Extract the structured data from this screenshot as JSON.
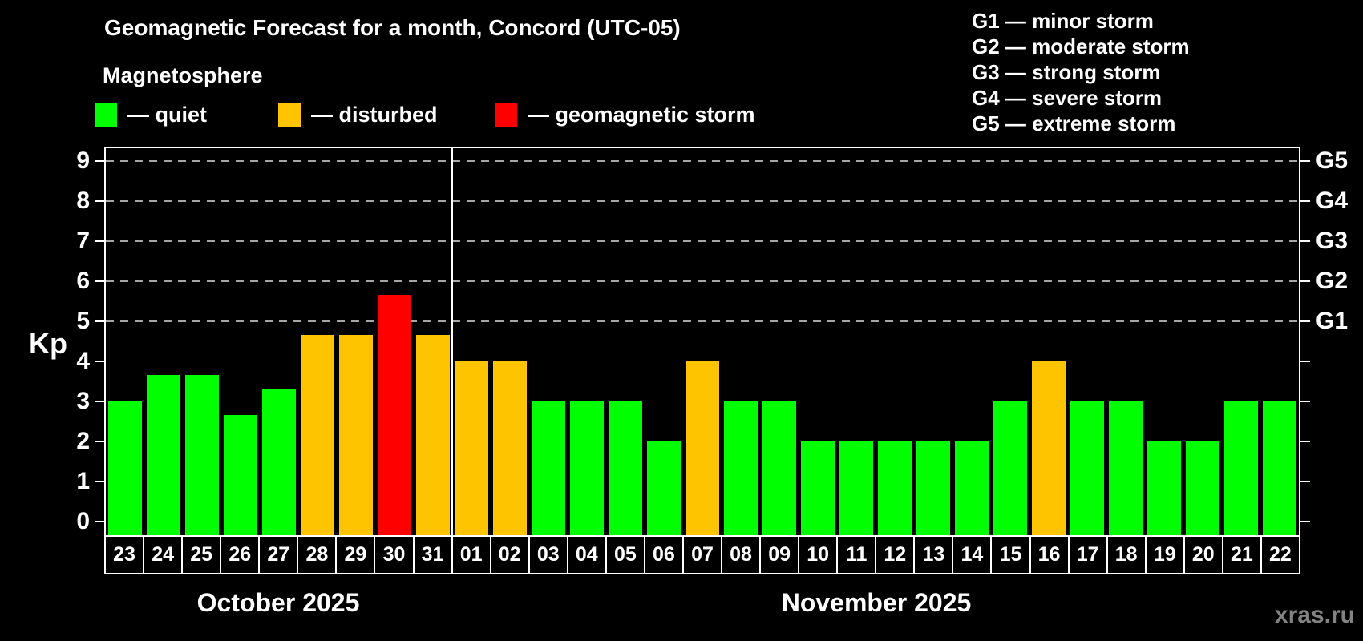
{
  "header": {
    "title": "Geomagnetic Forecast for a month, Concord (UTC-05)",
    "subtitle": "Magnetosphere"
  },
  "legend": {
    "items": [
      {
        "label": "— quiet",
        "color": "#00ff00",
        "status": "quiet"
      },
      {
        "label": "— disturbed",
        "color": "#ffc400",
        "status": "disturbed"
      },
      {
        "label": "— geomagnetic storm",
        "color": "#ff0000",
        "status": "storm"
      }
    ]
  },
  "storm_scale_legend": {
    "items": [
      "G1 — minor storm",
      "G2 — moderate storm",
      "G3 — strong storm",
      "G4 — severe storm",
      "G5 — extreme storm"
    ]
  },
  "watermark": "xras.ru",
  "chart_data": {
    "type": "bar",
    "title": "Geomagnetic Forecast for a month, Concord (UTC-05)",
    "ylabel": "Kp",
    "ylim": [
      0,
      9
    ],
    "yticks": [
      0,
      1,
      2,
      3,
      4,
      5,
      6,
      7,
      8,
      9
    ],
    "grid_levels": [
      5,
      6,
      7,
      8,
      9
    ],
    "grid_style": "dashed",
    "legend_position": "top",
    "right_axis": [
      {
        "kp": 5,
        "label": "G1"
      },
      {
        "kp": 6,
        "label": "G2"
      },
      {
        "kp": 7,
        "label": "G3"
      },
      {
        "kp": 8,
        "label": "G4"
      },
      {
        "kp": 9,
        "label": "G5"
      }
    ],
    "months": [
      {
        "label": "October 2025",
        "start_index": 0,
        "count": 9
      },
      {
        "label": "November 2025",
        "start_index": 9,
        "count": 22
      }
    ],
    "status_colors": {
      "quiet": "#00ff00",
      "disturbed": "#ffc400",
      "storm": "#ff0000"
    },
    "bars": [
      {
        "day": "23",
        "value": 3.0,
        "status": "quiet"
      },
      {
        "day": "24",
        "value": 3.67,
        "status": "quiet"
      },
      {
        "day": "25",
        "value": 3.67,
        "status": "quiet"
      },
      {
        "day": "26",
        "value": 2.67,
        "status": "quiet"
      },
      {
        "day": "27",
        "value": 3.33,
        "status": "quiet"
      },
      {
        "day": "28",
        "value": 4.67,
        "status": "disturbed"
      },
      {
        "day": "29",
        "value": 4.67,
        "status": "disturbed"
      },
      {
        "day": "30",
        "value": 5.67,
        "status": "storm"
      },
      {
        "day": "31",
        "value": 4.67,
        "status": "disturbed"
      },
      {
        "day": "01",
        "value": 4.0,
        "status": "disturbed"
      },
      {
        "day": "02",
        "value": 4.0,
        "status": "disturbed"
      },
      {
        "day": "03",
        "value": 3.0,
        "status": "quiet"
      },
      {
        "day": "04",
        "value": 3.0,
        "status": "quiet"
      },
      {
        "day": "05",
        "value": 3.0,
        "status": "quiet"
      },
      {
        "day": "06",
        "value": 2.0,
        "status": "quiet"
      },
      {
        "day": "07",
        "value": 4.0,
        "status": "disturbed"
      },
      {
        "day": "08",
        "value": 3.0,
        "status": "quiet"
      },
      {
        "day": "09",
        "value": 3.0,
        "status": "quiet"
      },
      {
        "day": "10",
        "value": 2.0,
        "status": "quiet"
      },
      {
        "day": "11",
        "value": 2.0,
        "status": "quiet"
      },
      {
        "day": "12",
        "value": 2.0,
        "status": "quiet"
      },
      {
        "day": "13",
        "value": 2.0,
        "status": "quiet"
      },
      {
        "day": "14",
        "value": 2.0,
        "status": "quiet"
      },
      {
        "day": "15",
        "value": 3.0,
        "status": "quiet"
      },
      {
        "day": "16",
        "value": 4.0,
        "status": "disturbed"
      },
      {
        "day": "17",
        "value": 3.0,
        "status": "quiet"
      },
      {
        "day": "18",
        "value": 3.0,
        "status": "quiet"
      },
      {
        "day": "19",
        "value": 2.0,
        "status": "quiet"
      },
      {
        "day": "20",
        "value": 2.0,
        "status": "quiet"
      },
      {
        "day": "21",
        "value": 3.0,
        "status": "quiet"
      },
      {
        "day": "22",
        "value": 3.0,
        "status": "quiet"
      }
    ]
  }
}
